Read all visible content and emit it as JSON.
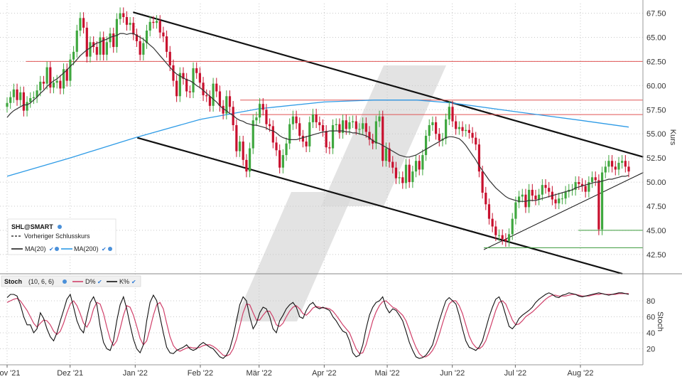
{
  "colors": {
    "up": "#3fa73f",
    "down": "#c8102e",
    "ma20": "#333333",
    "ma200": "#2e9be6",
    "resistance": "#e05555",
    "support": "#3a9a3a",
    "channel": "#111111",
    "stoch_k": "#111111",
    "stoch_d": "#d0406a",
    "watermark": "#d9d9d9",
    "grid": "#c8c8c8"
  },
  "legend": {
    "ticker": "SHL@SMART",
    "prev_close": "Vorheriger Schlusskurs",
    "ma20": "MA(20)",
    "ma200": "MA(200)"
  },
  "stoch_legend": {
    "name": "Stoch",
    "params": "(10, 6, 6)",
    "d": "D%",
    "k": "K%"
  },
  "chart_data": [
    {
      "type": "candlestick",
      "ylabel": "Kurs",
      "ylim": [
        40.5,
        68.5
      ],
      "yticks": [
        "42.50",
        "45.00",
        "47.50",
        "50.00",
        "52.50",
        "55.00",
        "57.50",
        "60.00",
        "62.50",
        "65.00",
        "67.50"
      ],
      "xticks": [
        "Nov '21",
        "Dez '21",
        "Jan '22",
        "Feb '22",
        "Mär '22",
        "Apr '22",
        "Mai '22",
        "Jun '22",
        "Jul '22",
        "Aug '22"
      ],
      "x_domain": [
        "2021-11-01",
        "2022-08-24"
      ],
      "grid": true,
      "close": [
        58.2,
        58.8,
        59.6,
        58.5,
        59.3,
        57.4,
        58.3,
        58.7,
        58.8,
        59.5,
        60.4,
        60.2,
        61.9,
        59.8,
        60.3,
        60.5,
        59.7,
        61.7,
        60.5,
        62.7,
        63.5,
        65.7,
        67.0,
        66.0,
        63.0,
        64.5,
        64.0,
        63.2,
        65.0,
        63.2,
        64.5,
        65.4,
        64.0,
        66.9,
        67.5,
        67.1,
        66.3,
        66.5,
        65.3,
        64.6,
        63.2,
        64.4,
        65.7,
        66.6,
        66.5,
        66.7,
        65.5,
        65.1,
        63.5,
        62.1,
        60.5,
        58.9,
        61.3,
        60.7,
        59.4,
        59.3,
        61.8,
        61.3,
        60.3,
        59.0,
        58.9,
        57.9,
        60.2,
        59.4,
        57.9,
        57.1,
        58.9,
        57.8,
        55.9,
        53.2,
        54.2,
        52.3,
        51.1,
        53.5,
        56.4,
        56.7,
        58.1,
        57.5,
        56.0,
        55.8,
        54.1,
        53.3,
        51.5,
        52.8,
        54.0,
        56.0,
        56.8,
        56.1,
        54.8,
        54.2,
        53.7,
        56.2,
        57.0,
        56.2,
        55.9,
        55.3,
        53.6,
        53.5,
        55.9,
        56.0,
        55.1,
        56.4,
        55.5,
        56.2,
        56.3,
        55.5,
        55.5,
        56.1,
        55.2,
        54.4,
        54.0,
        56.3,
        56.8,
        52.2,
        53.5,
        52.1,
        51.5,
        50.4,
        50.5,
        49.9,
        51.8,
        50.0,
        51.1,
        52.2,
        51.3,
        52.8,
        54.8,
        55.9,
        56.2,
        55.0,
        54.3,
        54.5,
        56.5,
        57.8,
        56.3,
        55.5,
        55.7,
        55.3,
        55.4,
        55.1,
        54.6,
        53.9,
        51.1,
        48.9,
        47.7,
        46.2,
        45.4,
        44.5,
        44.5,
        44.1,
        43.9,
        44.6,
        46.2,
        47.9,
        48.5,
        48.7,
        47.4,
        49.2,
        48.6,
        48.2,
        48.7,
        49.7,
        49.4,
        49.0,
        48.2,
        47.8,
        48.3,
        48.3,
        49.0,
        49.2,
        49.2,
        50.0,
        49.8,
        49.6,
        49.0,
        50.0,
        50.5,
        50.2,
        45.1,
        51.0,
        51.6,
        52.2,
        51.6,
        51.3,
        52.0,
        52.2,
        51.6,
        51.1
      ],
      "series": [
        {
          "name": "MA(20)",
          "values": [
            56.7,
            57.1,
            57.4,
            57.6,
            57.8,
            58.0,
            58.0,
            58.2,
            58.5,
            58.8,
            59.2,
            59.5,
            59.9,
            60.2,
            60.5,
            60.7,
            61.0,
            61.3,
            61.6,
            62.0,
            62.3,
            62.7,
            63.1,
            63.4,
            63.7,
            63.9,
            64.2,
            64.4,
            64.5,
            64.7,
            64.8,
            65.0,
            65.1,
            65.2,
            65.4,
            65.4,
            65.3,
            65.4,
            65.4,
            65.2,
            65.0,
            64.8,
            64.5,
            64.2,
            63.9,
            63.5,
            63.1,
            62.7,
            62.3,
            61.9,
            61.5,
            61.2,
            61.0,
            60.8,
            60.6,
            60.5,
            60.3,
            60.0,
            59.8,
            59.5,
            59.2,
            58.9,
            58.6,
            58.3,
            57.9,
            57.6,
            57.4,
            57.1,
            56.9,
            56.6,
            56.4,
            56.3,
            56.1,
            56.0,
            55.9,
            55.9,
            55.8,
            55.7,
            55.6,
            55.4,
            55.3,
            55.1,
            54.8,
            54.6,
            54.5,
            54.4,
            54.4,
            54.4,
            54.5,
            54.6,
            54.7,
            54.8,
            54.9,
            55.0,
            55.1,
            55.2,
            55.2,
            55.3,
            55.3,
            55.3,
            55.3,
            55.3,
            55.2,
            55.2,
            55.1,
            55.1,
            55.0,
            54.9,
            54.8,
            54.6,
            54.3,
            54.1,
            54.0,
            53.8,
            53.6,
            53.4,
            53.2,
            53.0,
            52.8,
            52.7,
            52.6,
            52.6,
            52.7,
            52.8,
            53.0,
            53.2,
            53.4,
            53.6,
            53.8,
            54.0,
            54.2,
            54.4,
            54.6,
            54.7,
            54.7,
            54.6,
            54.5,
            54.2,
            53.8,
            53.3,
            52.8,
            52.3,
            51.7,
            51.2,
            50.7,
            50.2,
            49.8,
            49.4,
            49.1,
            48.8,
            48.5,
            48.3,
            48.2,
            48.1,
            48.0,
            48.0,
            48.0,
            48.1,
            48.1,
            48.1,
            48.2,
            48.3,
            48.4,
            48.5,
            48.6,
            48.7,
            48.8,
            48.9,
            49.0,
            49.1,
            49.2,
            49.4,
            49.5,
            49.6,
            49.7,
            49.8,
            49.9,
            50.0,
            50.0,
            50.1,
            50.2,
            50.3,
            50.3,
            50.4,
            50.5,
            50.6,
            50.6,
            50.7
          ]
        },
        {
          "name": "MA(200)",
          "points": [
            [
              "2021-11-01",
              50.6
            ],
            [
              "2021-12-01",
              52.5
            ],
            [
              "2022-01-01",
              54.6
            ],
            [
              "2022-02-01",
              56.5
            ],
            [
              "2022-03-01",
              57.6
            ],
            [
              "2022-04-01",
              58.3
            ],
            [
              "2022-04-25",
              58.5
            ],
            [
              "2022-05-15",
              58.5
            ],
            [
              "2022-06-01",
              58.2
            ],
            [
              "2022-07-01",
              57.3
            ],
            [
              "2022-08-01",
              56.4
            ],
            [
              "2022-08-24",
              55.7
            ]
          ]
        }
      ],
      "trendlines": [
        {
          "name": "Kanal oben",
          "from": [
            "2021-12-31",
            67.6
          ],
          "to": [
            "2022-08-31",
            52.6
          ]
        },
        {
          "name": "Kanal unten",
          "from": [
            "2022-01-02",
            54.6
          ],
          "to": [
            "2022-08-21",
            40.5
          ]
        },
        {
          "name": "Aufwärtstrend",
          "from": [
            "2022-06-16",
            43.0
          ],
          "to": [
            "2022-08-31",
            51.0
          ]
        }
      ],
      "horizontal_levels": [
        {
          "value": 62.5,
          "from": "2021-11-10",
          "kind": "resistance"
        },
        {
          "value": 58.5,
          "from": "2022-02-20",
          "kind": "resistance"
        },
        {
          "value": 57.0,
          "from": "2022-02-20",
          "kind": "resistance"
        },
        {
          "value": 45.0,
          "from": "2022-07-31",
          "kind": "support"
        },
        {
          "value": 43.2,
          "from": "2022-06-16",
          "kind": "support"
        }
      ]
    },
    {
      "type": "line",
      "ylabel": "Stoch",
      "ylim": [
        0,
        96
      ],
      "yticks": [
        "20",
        "40",
        "60",
        "80"
      ],
      "series": [
        {
          "name": "K%",
          "values": [
            84,
            88,
            88,
            86,
            75,
            60,
            50,
            50,
            40,
            45,
            65,
            58,
            45,
            35,
            30,
            40,
            55,
            68,
            82,
            88,
            72,
            55,
            45,
            40,
            60,
            78,
            85,
            75,
            48,
            28,
            20,
            18,
            30,
            55,
            75,
            85,
            70,
            50,
            32,
            20,
            15,
            25,
            55,
            78,
            87,
            80,
            60,
            40,
            22,
            15,
            14,
            18,
            20,
            22,
            25,
            20,
            18,
            20,
            25,
            28,
            25,
            22,
            20,
            15,
            10,
            8,
            12,
            20,
            35,
            55,
            75,
            85,
            80,
            60,
            45,
            52,
            65,
            72,
            70,
            60,
            45,
            40,
            55,
            62,
            70,
            75,
            78,
            72,
            60,
            58,
            68,
            75,
            78,
            72,
            70,
            72,
            70,
            68,
            60,
            55,
            48,
            42,
            40,
            30,
            15,
            10,
            12,
            25,
            45,
            62,
            72,
            78,
            80,
            85,
            72,
            65,
            70,
            68,
            62,
            55,
            42,
            28,
            18,
            10,
            8,
            9,
            12,
            18,
            25,
            40,
            55,
            68,
            80,
            84,
            80,
            76,
            62,
            45,
            30,
            22,
            20,
            18,
            22,
            30,
            45,
            60,
            72,
            82,
            85,
            76,
            62,
            48,
            45,
            50,
            58,
            62,
            65,
            68,
            72,
            78,
            82,
            85,
            88,
            90,
            88,
            85,
            84,
            87,
            88,
            90,
            89,
            88,
            86,
            85,
            86,
            87,
            88,
            89,
            90,
            89,
            88,
            87,
            88,
            89,
            90,
            90,
            89,
            88
          ]
        },
        {
          "name": "D%",
          "values": [
            78,
            80,
            82,
            83,
            80,
            74,
            68,
            60,
            52,
            47,
            52,
            56,
            55,
            50,
            42,
            38,
            42,
            52,
            65,
            76,
            80,
            74,
            64,
            52,
            47,
            55,
            70,
            78,
            76,
            64,
            47,
            32,
            24,
            30,
            45,
            62,
            74,
            72,
            62,
            48,
            33,
            25,
            30,
            45,
            62,
            75,
            78,
            70,
            52,
            35,
            24,
            19,
            17,
            19,
            21,
            22,
            21,
            21,
            22,
            24,
            25,
            25,
            23,
            20,
            16,
            12,
            11,
            13,
            20,
            32,
            48,
            65,
            76,
            75,
            65,
            56,
            56,
            62,
            67,
            67,
            60,
            50,
            48,
            52,
            60,
            67,
            72,
            74,
            70,
            64,
            62,
            66,
            71,
            73,
            72,
            71,
            71,
            70,
            67,
            62,
            56,
            50,
            45,
            40,
            30,
            20,
            14,
            15,
            25,
            40,
            55,
            66,
            74,
            79,
            80,
            76,
            72,
            70,
            66,
            62,
            55,
            44,
            32,
            22,
            14,
            10,
            10,
            13,
            18,
            26,
            38,
            52,
            65,
            76,
            80,
            80,
            74,
            64,
            50,
            36,
            27,
            22,
            20,
            23,
            30,
            42,
            55,
            68,
            78,
            80,
            76,
            66,
            56,
            50,
            51,
            55,
            60,
            63,
            66,
            70,
            74,
            78,
            82,
            85,
            87,
            87,
            86,
            86,
            86,
            87,
            88,
            88,
            87,
            86,
            86,
            86,
            87,
            88,
            88,
            89,
            88,
            88,
            88,
            88,
            89,
            89,
            89,
            89
          ]
        }
      ]
    }
  ]
}
